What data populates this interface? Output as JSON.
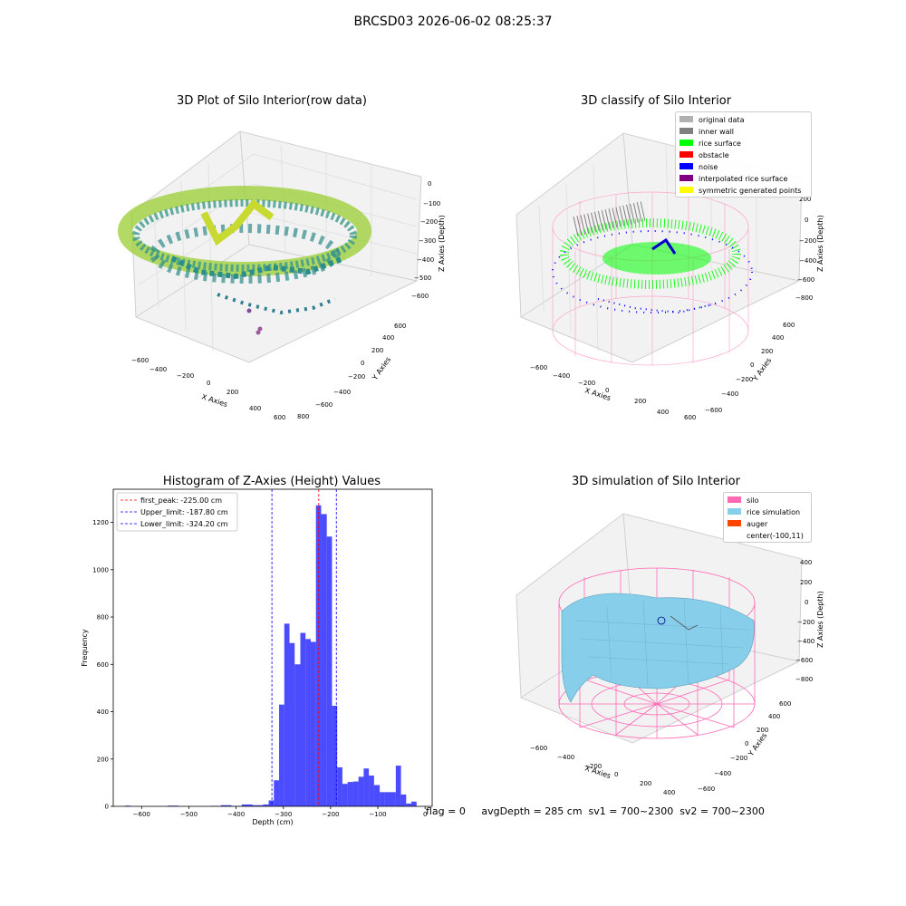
{
  "figure": {
    "suptitle": "BRCSD03 2026-06-02 08:25:37",
    "footer": "flag = 0     avgDepth = 285 cm  sv1 = 700~2300  sv2 = 700~2300"
  },
  "panels": {
    "raw": {
      "title": "3D Plot of Silo Interior(row data)",
      "xlabel": "X Axies",
      "ylabel": "Y Axies",
      "zlabel": "Z Axies (Depth)",
      "xticks": [
        "−600",
        "−400",
        "−200",
        "0",
        "200",
        "400",
        "600",
        "800"
      ],
      "yticks": [
        "−600",
        "−400",
        "−200",
        "0",
        "200",
        "400",
        "600"
      ],
      "zticks": [
        "0",
        "−100",
        "−200",
        "−300",
        "−400",
        "−500",
        "−600"
      ]
    },
    "classify": {
      "title": "3D classify of Silo Interior",
      "xlabel": "X Axies",
      "ylabel": "Y Axies",
      "zlabel": "Z Axies (Depth)",
      "xticks": [
        "−600",
        "−400",
        "−200",
        "0",
        "200",
        "400",
        "600"
      ],
      "yticks": [
        "−600",
        "−400",
        "−200",
        "0",
        "200",
        "400",
        "600"
      ],
      "zticks": [
        "200",
        "0",
        "−200",
        "−400",
        "−600",
        "−800"
      ],
      "legend": [
        {
          "label": "original data",
          "color": "#b0b0b0"
        },
        {
          "label": "inner wall",
          "color": "#808080"
        },
        {
          "label": "rice surface",
          "color": "#00ff00"
        },
        {
          "label": "obstacle",
          "color": "#ff0000"
        },
        {
          "label": "noise",
          "color": "#0000ff"
        },
        {
          "label": "interpolated rice surface",
          "color": "#800080"
        },
        {
          "label": "symmetric generated points",
          "color": "#ffff00"
        }
      ]
    },
    "simulation": {
      "title": "3D simulation of Silo Interior",
      "xlabel": "X Axies",
      "ylabel": "Y Axies",
      "zlabel": "Z Axies (Depth)",
      "xticks": [
        "−600",
        "−400",
        "−200",
        "0",
        "200",
        "400"
      ],
      "yticks": [
        "−600",
        "−400",
        "−200",
        "0",
        "200",
        "400",
        "600"
      ],
      "zticks": [
        "400",
        "200",
        "0",
        "−200",
        "−400",
        "−600",
        "−800"
      ],
      "legend": [
        {
          "label": "silo",
          "color": "#ff69b4"
        },
        {
          "label": "rice simulation",
          "color": "#87ceeb"
        },
        {
          "label": "auger",
          "color": "#ff4500"
        },
        {
          "label": "center(-100,11)",
          "color": ""
        }
      ]
    }
  },
  "chart_data": {
    "type": "bar",
    "title": "Histogram of Z-Axies (Height) Values",
    "xlabel": "Depth (cm)",
    "ylabel": "Frequency",
    "xlim": [
      -660,
      15
    ],
    "ylim": [
      0,
      1340
    ],
    "xticks": [
      -600,
      -500,
      -400,
      -300,
      -200,
      -100,
      0
    ],
    "yticks": [
      0,
      200,
      400,
      600,
      800,
      1000,
      1200
    ],
    "color": "#0000ff",
    "bins": [
      {
        "x0": -635,
        "x1": -623,
        "count": 3
      },
      {
        "x0": -545,
        "x1": -522,
        "count": 3
      },
      {
        "x0": -455,
        "x1": -432,
        "count": 2
      },
      {
        "x0": -432,
        "x1": -410,
        "count": 5
      },
      {
        "x0": -410,
        "x1": -388,
        "count": 2
      },
      {
        "x0": -388,
        "x1": -365,
        "count": 8
      },
      {
        "x0": -365,
        "x1": -343,
        "count": 5
      },
      {
        "x0": -343,
        "x1": -331,
        "count": 8
      },
      {
        "x0": -331,
        "x1": -320,
        "count": 25
      },
      {
        "x0": -320,
        "x1": -309,
        "count": 110
      },
      {
        "x0": -309,
        "x1": -298,
        "count": 430
      },
      {
        "x0": -298,
        "x1": -287,
        "count": 772
      },
      {
        "x0": -287,
        "x1": -276,
        "count": 690
      },
      {
        "x0": -276,
        "x1": -264,
        "count": 600
      },
      {
        "x0": -264,
        "x1": -253,
        "count": 733
      },
      {
        "x0": -253,
        "x1": -242,
        "count": 707
      },
      {
        "x0": -242,
        "x1": -231,
        "count": 695
      },
      {
        "x0": -231,
        "x1": -220,
        "count": 1272
      },
      {
        "x0": -220,
        "x1": -208,
        "count": 1235
      },
      {
        "x0": -208,
        "x1": -197,
        "count": 1140
      },
      {
        "x0": -197,
        "x1": -186,
        "count": 425
      },
      {
        "x0": -186,
        "x1": -175,
        "count": 165
      },
      {
        "x0": -175,
        "x1": -164,
        "count": 95
      },
      {
        "x0": -164,
        "x1": -152,
        "count": 103
      },
      {
        "x0": -152,
        "x1": -141,
        "count": 105
      },
      {
        "x0": -141,
        "x1": -130,
        "count": 125
      },
      {
        "x0": -130,
        "x1": -119,
        "count": 160
      },
      {
        "x0": -119,
        "x1": -108,
        "count": 130
      },
      {
        "x0": -108,
        "x1": -96,
        "count": 90
      },
      {
        "x0": -96,
        "x1": -85,
        "count": 60
      },
      {
        "x0": -85,
        "x1": -62,
        "count": 60
      },
      {
        "x0": -62,
        "x1": -51,
        "count": 172
      },
      {
        "x0": -51,
        "x1": -40,
        "count": 50
      },
      {
        "x0": -40,
        "x1": -29,
        "count": 12
      },
      {
        "x0": -29,
        "x1": -18,
        "count": 20
      }
    ],
    "vlines": [
      {
        "x": -225.0,
        "color": "#ff0000",
        "label": "first_peak: -225.00 cm"
      },
      {
        "x": -187.8,
        "color": "#0000ff",
        "label": "Upper_limit: -187.80 cm"
      },
      {
        "x": -324.2,
        "color": "#0000ff",
        "label": "Lower_limit: -324.20 cm"
      }
    ],
    "legend_position": "upper left"
  }
}
